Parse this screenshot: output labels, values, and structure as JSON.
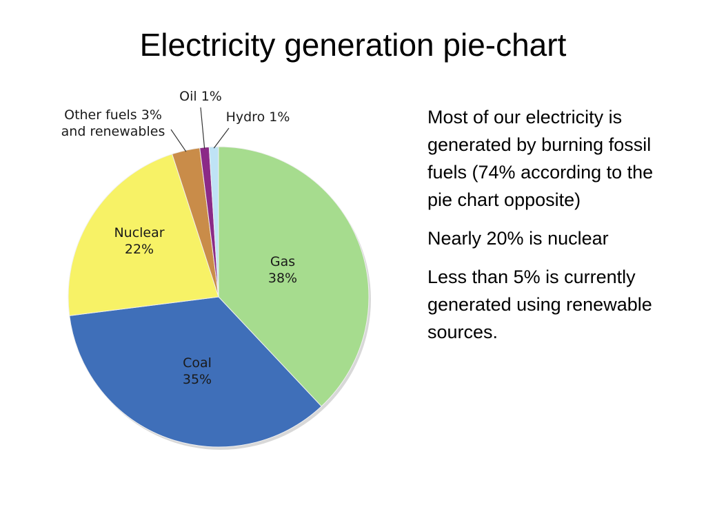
{
  "slide": {
    "title": "Electricity generation pie-chart",
    "paragraphs": [
      "Most of our electricity is generated by burning fossil fuels (74% according to the pie chart opposite)",
      "Nearly 20% is nuclear",
      "Less than 5% is currently generated using renewable sources."
    ]
  },
  "chart_data": {
    "type": "pie",
    "title": "",
    "slices": [
      {
        "name": "Gas",
        "value": 38,
        "color": "#a6dc8e",
        "label_lines": [
          "Gas",
          "38%"
        ]
      },
      {
        "name": "Coal",
        "value": 35,
        "color": "#3f6fb9",
        "label_lines": [
          "Coal",
          "35%"
        ]
      },
      {
        "name": "Nuclear",
        "value": 22,
        "color": "#f7f266",
        "label_lines": [
          "Nuclear",
          "22%"
        ]
      },
      {
        "name": "Other fuels and renewables",
        "value": 3,
        "color": "#c98c49",
        "label_lines": [
          "Other fuels 3%",
          "and renewables"
        ]
      },
      {
        "name": "Oil",
        "value": 1,
        "color": "#8b2a87",
        "label_lines": [
          "Oil 1%"
        ]
      },
      {
        "name": "Hydro",
        "value": 1,
        "color": "#bfe3f5",
        "label_lines": [
          "Hydro 1%"
        ]
      }
    ]
  }
}
